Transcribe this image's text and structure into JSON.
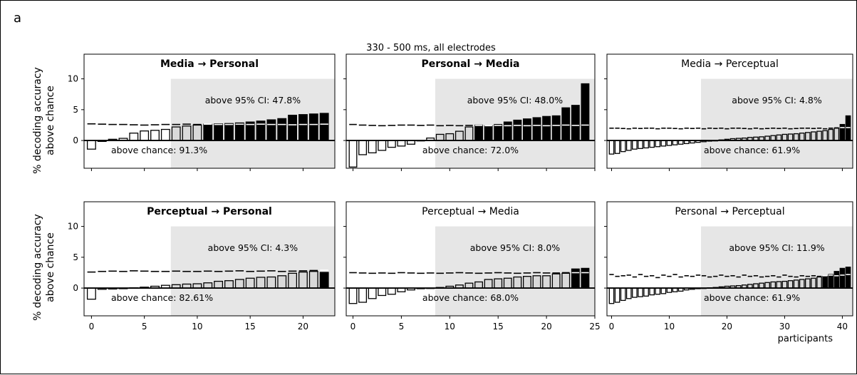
{
  "figure": {
    "panel_label": "a",
    "suptitle": "330 - 500 ms, all electrodes",
    "ylabel_line1": "% decoding accuracy",
    "ylabel_line2": "above chance",
    "xlabel": "participants"
  },
  "colors": {
    "shade": "#e6e6e6",
    "significant_bar": "#000000",
    "above_chance_bar": "#d9d9d9",
    "null_bar": "#ffffff",
    "edge": "#000000"
  },
  "chart_data": [
    {
      "type": "bar",
      "title": "Media → Personal",
      "title_bold": true,
      "n": 23,
      "shade_from": 7.5,
      "values": [
        -1.4,
        -0.15,
        0.2,
        0.35,
        1.2,
        1.55,
        1.65,
        1.8,
        2.2,
        2.35,
        2.5,
        2.65,
        2.7,
        2.75,
        2.85,
        3.0,
        3.15,
        3.35,
        3.55,
        4.1,
        4.2,
        4.3,
        4.4
      ],
      "ci95": [
        2.7,
        2.65,
        2.6,
        2.6,
        2.55,
        2.5,
        2.55,
        2.6,
        2.6,
        2.65,
        2.6,
        2.65,
        2.6,
        2.6,
        2.65,
        2.6,
        2.65,
        2.6,
        2.6,
        2.55,
        2.6,
        2.6,
        2.65
      ],
      "sig_from": 11,
      "above_ci": "above 95% CI: 47.8%",
      "above_chance": "above chance: 91.3%",
      "xticks": [
        0,
        5,
        10,
        15,
        20
      ],
      "xlim": [
        -0.7,
        23.0
      ],
      "ylim": [
        -4.5,
        14
      ],
      "yticks": [
        0,
        5,
        10
      ]
    },
    {
      "type": "bar",
      "title": "Personal → Media",
      "title_bold": true,
      "n": 25,
      "shade_from": 8.5,
      "values": [
        -4.3,
        -2.3,
        -2.0,
        -1.6,
        -1.1,
        -0.9,
        -0.6,
        0.0,
        0.4,
        1.0,
        1.1,
        1.5,
        2.2,
        2.5,
        2.4,
        2.6,
        3.0,
        3.3,
        3.5,
        3.7,
        3.9,
        4.0,
        5.3,
        5.7,
        9.2
      ],
      "ci95": [
        2.6,
        2.5,
        2.45,
        2.4,
        2.45,
        2.5,
        2.5,
        2.45,
        2.5,
        2.4,
        2.45,
        2.4,
        2.45,
        2.45,
        2.4,
        2.45,
        2.4,
        2.45,
        2.4,
        2.45,
        2.4,
        2.45,
        2.5,
        2.45,
        2.5
      ],
      "sig_from": 13,
      "above_ci": "above 95% CI: 48.0%",
      "above_chance": "above chance: 72.0%",
      "xticks": [
        0,
        5,
        10,
        15,
        20,
        25
      ],
      "xlim": [
        -0.7,
        25.0
      ],
      "ylim": [
        -4.5,
        14
      ],
      "yticks": [
        0,
        5,
        10
      ]
    },
    {
      "type": "bar",
      "title": "Media → Perceptual",
      "title_bold": false,
      "n": 42,
      "shade_from": 15.5,
      "values": [
        -2.2,
        -2.1,
        -1.8,
        -1.6,
        -1.4,
        -1.3,
        -1.2,
        -1.1,
        -1.0,
        -0.9,
        -0.8,
        -0.7,
        -0.6,
        -0.5,
        -0.4,
        -0.3,
        -0.2,
        -0.1,
        0.0,
        0.1,
        0.2,
        0.3,
        0.35,
        0.4,
        0.5,
        0.55,
        0.6,
        0.7,
        0.8,
        0.9,
        1.0,
        1.05,
        1.1,
        1.2,
        1.3,
        1.4,
        1.5,
        1.6,
        1.8,
        2.0,
        2.6,
        4.0
      ],
      "ci95": [
        2.0,
        2.0,
        1.95,
        1.9,
        2.0,
        1.95,
        2.0,
        2.0,
        1.9,
        2.0,
        2.0,
        1.95,
        1.9,
        2.0,
        1.95,
        2.0,
        1.9,
        2.0,
        1.95,
        2.0,
        1.9,
        2.0,
        2.0,
        1.95,
        1.9,
        2.0,
        1.9,
        1.95,
        2.0,
        1.95,
        2.0,
        1.9,
        1.95,
        2.0,
        2.0,
        1.95,
        2.0,
        1.9,
        2.0,
        2.05,
        2.1,
        2.1
      ],
      "sig_from": 40,
      "above_ci": "above 95% CI: 4.8%",
      "above_chance": "above chance: 61.9%",
      "xticks": [
        0,
        10,
        20,
        30,
        40
      ],
      "xlim": [
        -0.8,
        41.8
      ],
      "ylim": [
        -4.5,
        14
      ],
      "yticks": [
        0,
        5,
        10
      ]
    },
    {
      "type": "bar",
      "title": "Perceptual → Personal",
      "title_bold": true,
      "n": 23,
      "shade_from": 7.5,
      "values": [
        -1.8,
        -0.2,
        -0.15,
        -0.1,
        0.05,
        0.15,
        0.3,
        0.45,
        0.55,
        0.65,
        0.7,
        0.85,
        1.1,
        1.2,
        1.4,
        1.6,
        1.75,
        1.8,
        2.0,
        2.4,
        2.6,
        2.7,
        2.55
      ],
      "ci95": [
        2.6,
        2.7,
        2.75,
        2.7,
        2.8,
        2.75,
        2.7,
        2.7,
        2.75,
        2.7,
        2.7,
        2.75,
        2.7,
        2.75,
        2.8,
        2.7,
        2.75,
        2.8,
        2.7,
        2.75,
        2.8,
        2.85,
        2.9
      ],
      "sig_from": 22,
      "above_ci": "above 95% CI: 4.3%",
      "above_chance": "above chance: 82.61%",
      "xticks": [
        0,
        5,
        10,
        15,
        20
      ],
      "xlim": [
        -0.7,
        23.0
      ],
      "ylim": [
        -4.5,
        14
      ],
      "yticks": [
        0,
        5,
        10
      ]
    },
    {
      "type": "bar",
      "title": "Perceptual → Media",
      "title_bold": false,
      "n": 25,
      "shade_from": 8.5,
      "values": [
        -2.5,
        -2.3,
        -1.7,
        -1.2,
        -1.0,
        -0.6,
        -0.3,
        -0.1,
        0.0,
        0.1,
        0.3,
        0.5,
        0.8,
        1.0,
        1.4,
        1.5,
        1.6,
        1.8,
        1.9,
        2.0,
        2.0,
        2.3,
        2.4,
        3.1,
        3.2
      ],
      "ci95": [
        2.5,
        2.45,
        2.4,
        2.45,
        2.4,
        2.5,
        2.45,
        2.4,
        2.45,
        2.4,
        2.45,
        2.5,
        2.45,
        2.4,
        2.45,
        2.5,
        2.45,
        2.4,
        2.45,
        2.5,
        2.45,
        2.45,
        2.5,
        2.5,
        2.5
      ],
      "sig_from": 23,
      "above_ci": "above 95% CI: 8.0%",
      "above_chance": "above chance: 68.0%",
      "xticks": [
        0,
        5,
        10,
        15,
        20,
        25
      ],
      "xlim": [
        -0.7,
        25.0
      ],
      "ylim": [
        -4.5,
        14
      ],
      "yticks": [
        0,
        5,
        10
      ]
    },
    {
      "type": "bar",
      "title": "Personal → Perceptual",
      "title_bold": false,
      "n": 42,
      "shade_from": 15.5,
      "values": [
        -2.5,
        -2.3,
        -2.0,
        -1.7,
        -1.5,
        -1.4,
        -1.3,
        -1.1,
        -1.0,
        -0.9,
        -0.7,
        -0.6,
        -0.5,
        -0.3,
        -0.2,
        -0.1,
        0.0,
        0.05,
        0.1,
        0.2,
        0.3,
        0.35,
        0.4,
        0.5,
        0.6,
        0.7,
        0.8,
        0.9,
        1.0,
        1.05,
        1.1,
        1.2,
        1.3,
        1.4,
        1.5,
        1.6,
        1.8,
        1.9,
        2.2,
        2.7,
        3.2,
        3.4
      ],
      "ci95": [
        2.2,
        1.9,
        2.0,
        2.1,
        1.8,
        2.2,
        1.9,
        2.0,
        1.7,
        2.1,
        1.9,
        2.2,
        1.8,
        2.0,
        1.9,
        2.1,
        2.0,
        1.8,
        1.9,
        2.1,
        1.9,
        2.0,
        1.8,
        2.1,
        1.9,
        2.0,
        1.8,
        1.9,
        2.0,
        1.8,
        2.1,
        1.9,
        1.8,
        2.0,
        1.9,
        2.0,
        1.9,
        2.0,
        2.1,
        2.0,
        2.1,
        2.2
      ],
      "sig_from": 37,
      "above_ci": "above 95% CI: 11.9%",
      "above_chance": "above chance: 61.9%",
      "xticks": [
        0,
        10,
        20,
        30,
        40
      ],
      "xlim": [
        -0.8,
        41.8
      ],
      "ylim": [
        -4.5,
        14
      ],
      "yticks": [
        0,
        5,
        10
      ]
    }
  ]
}
